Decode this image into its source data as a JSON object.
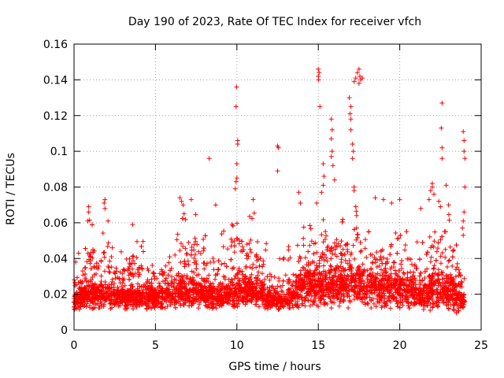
{
  "chart_data": {
    "type": "scatter",
    "title": "Day 190 of 2023, Rate Of TEC Index for receiver vfch",
    "xlabel": "GPS time / hours",
    "ylabel": "ROTI / TECUs",
    "xlim": [
      0,
      25
    ],
    "ylim": [
      0,
      0.16
    ],
    "x_ticks": [
      0,
      5,
      10,
      15,
      20,
      25
    ],
    "y_ticks": [
      0,
      0.02,
      0.04,
      0.06,
      0.08,
      0.1,
      0.12,
      0.14,
      0.16
    ],
    "x_tick_labels": [
      "0",
      "5",
      "10",
      "15",
      "20",
      "25"
    ],
    "y_tick_labels": [
      "0",
      "0.02",
      "0.04",
      "0.06",
      "0.08",
      "0.1",
      "0.12",
      "0.14",
      "0.16"
    ],
    "grid": true,
    "marker": "+",
    "marker_color": "#ff0000",
    "series": [
      {
        "name": "ROTI",
        "note": "dense band of roughly 10000 points from 0 to 24 h, mostly between 0.005 and 0.04 TECU, with bursts to ~0.07 and isolated outliers up to ~0.146",
        "envelope": {
          "x": [
            0,
            0.5,
            1,
            1.5,
            2,
            2.5,
            3,
            3.5,
            4,
            4.5,
            5,
            5.5,
            6,
            6.5,
            7,
            7.5,
            8,
            8.5,
            9,
            9.5,
            10,
            10.5,
            11,
            11.5,
            12,
            12.5,
            13,
            13.5,
            14,
            14.5,
            15,
            15.5,
            16,
            16.5,
            17,
            17.5,
            18,
            18.5,
            19,
            19.5,
            20,
            20.5,
            21,
            21.5,
            22,
            22.5,
            23,
            23.5,
            24
          ],
          "low": [
            0.007,
            0.008,
            0.007,
            0.006,
            0.007,
            0.008,
            0.008,
            0.007,
            0.008,
            0.008,
            0.008,
            0.007,
            0.008,
            0.007,
            0.006,
            0.007,
            0.007,
            0.008,
            0.008,
            0.008,
            0.007,
            0.008,
            0.008,
            0.008,
            0.008,
            0.009,
            0.009,
            0.007,
            0.007,
            0.006,
            0.006,
            0.006,
            0.006,
            0.006,
            0.006,
            0.006,
            0.006,
            0.006,
            0.006,
            0.007,
            0.007,
            0.007,
            0.006,
            0.005,
            0.004,
            0.005,
            0.005,
            0.005,
            0.006
          ],
          "mid": [
            0.016,
            0.018,
            0.02,
            0.019,
            0.02,
            0.019,
            0.018,
            0.018,
            0.019,
            0.019,
            0.018,
            0.018,
            0.02,
            0.022,
            0.022,
            0.022,
            0.02,
            0.019,
            0.019,
            0.02,
            0.022,
            0.022,
            0.022,
            0.02,
            0.017,
            0.016,
            0.016,
            0.02,
            0.024,
            0.025,
            0.024,
            0.024,
            0.024,
            0.024,
            0.025,
            0.025,
            0.024,
            0.023,
            0.023,
            0.022,
            0.022,
            0.021,
            0.02,
            0.02,
            0.021,
            0.022,
            0.021,
            0.019,
            0.016
          ],
          "high": [
            0.03,
            0.031,
            0.05,
            0.035,
            0.05,
            0.035,
            0.034,
            0.035,
            0.036,
            0.036,
            0.035,
            0.035,
            0.04,
            0.06,
            0.045,
            0.05,
            0.038,
            0.038,
            0.04,
            0.045,
            0.055,
            0.045,
            0.055,
            0.04,
            0.032,
            0.03,
            0.03,
            0.04,
            0.045,
            0.048,
            0.05,
            0.05,
            0.05,
            0.05,
            0.05,
            0.055,
            0.05,
            0.045,
            0.045,
            0.042,
            0.042,
            0.04,
            0.04,
            0.04,
            0.05,
            0.055,
            0.05,
            0.04,
            0.03
          ]
        },
        "highlights": [
          {
            "x": 0.1,
            "y": 0.038
          },
          {
            "x": 0.9,
            "y": 0.069
          },
          {
            "x": 0.9,
            "y": 0.066
          },
          {
            "x": 0.85,
            "y": 0.061
          },
          {
            "x": 1.9,
            "y": 0.073
          },
          {
            "x": 1.85,
            "y": 0.071
          },
          {
            "x": 1.9,
            "y": 0.068
          },
          {
            "x": 3.6,
            "y": 0.059
          },
          {
            "x": 6.5,
            "y": 0.074
          },
          {
            "x": 6.6,
            "y": 0.072
          },
          {
            "x": 6.7,
            "y": 0.07
          },
          {
            "x": 7.2,
            "y": 0.073
          },
          {
            "x": 8.3,
            "y": 0.096
          },
          {
            "x": 8.7,
            "y": 0.07
          },
          {
            "x": 9.9,
            "y": 0.079
          },
          {
            "x": 9.95,
            "y": 0.083
          },
          {
            "x": 10.0,
            "y": 0.085
          },
          {
            "x": 10.0,
            "y": 0.093
          },
          {
            "x": 10.05,
            "y": 0.104
          },
          {
            "x": 10.05,
            "y": 0.106
          },
          {
            "x": 9.95,
            "y": 0.125
          },
          {
            "x": 9.98,
            "y": 0.136
          },
          {
            "x": 11.0,
            "y": 0.073
          },
          {
            "x": 12.5,
            "y": 0.103
          },
          {
            "x": 12.55,
            "y": 0.102
          },
          {
            "x": 12.5,
            "y": 0.089
          },
          {
            "x": 13.8,
            "y": 0.077
          },
          {
            "x": 13.9,
            "y": 0.071
          },
          {
            "x": 14.9,
            "y": 0.071
          },
          {
            "x": 15.0,
            "y": 0.146
          },
          {
            "x": 15.05,
            "y": 0.144
          },
          {
            "x": 15.0,
            "y": 0.142
          },
          {
            "x": 15.02,
            "y": 0.14
          },
          {
            "x": 15.1,
            "y": 0.125
          },
          {
            "x": 15.3,
            "y": 0.093
          },
          {
            "x": 15.35,
            "y": 0.086
          },
          {
            "x": 15.3,
            "y": 0.081
          },
          {
            "x": 15.2,
            "y": 0.077
          },
          {
            "x": 15.8,
            "y": 0.118
          },
          {
            "x": 15.85,
            "y": 0.112
          },
          {
            "x": 15.8,
            "y": 0.107
          },
          {
            "x": 15.85,
            "y": 0.1
          },
          {
            "x": 15.8,
            "y": 0.097
          },
          {
            "x": 15.9,
            "y": 0.092
          },
          {
            "x": 16.0,
            "y": 0.084
          },
          {
            "x": 16.9,
            "y": 0.13
          },
          {
            "x": 17.0,
            "y": 0.125
          },
          {
            "x": 16.95,
            "y": 0.121
          },
          {
            "x": 17.0,
            "y": 0.118
          },
          {
            "x": 17.0,
            "y": 0.112
          },
          {
            "x": 17.1,
            "y": 0.104
          },
          {
            "x": 17.15,
            "y": 0.1
          },
          {
            "x": 17.1,
            "y": 0.096
          },
          {
            "x": 17.2,
            "y": 0.08
          },
          {
            "x": 17.2,
            "y": 0.078
          },
          {
            "x": 17.3,
            "y": 0.069
          },
          {
            "x": 17.6,
            "y": 0.14
          },
          {
            "x": 17.55,
            "y": 0.142
          },
          {
            "x": 17.4,
            "y": 0.144
          },
          {
            "x": 17.5,
            "y": 0.146
          },
          {
            "x": 17.7,
            "y": 0.141
          },
          {
            "x": 17.5,
            "y": 0.138
          },
          {
            "x": 17.3,
            "y": 0.141
          },
          {
            "x": 17.2,
            "y": 0.139
          },
          {
            "x": 18.5,
            "y": 0.074
          },
          {
            "x": 19.0,
            "y": 0.073
          },
          {
            "x": 19.5,
            "y": 0.071
          },
          {
            "x": 20.0,
            "y": 0.073
          },
          {
            "x": 21.3,
            "y": 0.068
          },
          {
            "x": 21.8,
            "y": 0.073
          },
          {
            "x": 21.9,
            "y": 0.078
          },
          {
            "x": 22.0,
            "y": 0.082
          },
          {
            "x": 22.0,
            "y": 0.08
          },
          {
            "x": 22.1,
            "y": 0.076
          },
          {
            "x": 22.4,
            "y": 0.072
          },
          {
            "x": 22.5,
            "y": 0.069
          },
          {
            "x": 22.6,
            "y": 0.096
          },
          {
            "x": 22.6,
            "y": 0.102
          },
          {
            "x": 22.55,
            "y": 0.113
          },
          {
            "x": 22.6,
            "y": 0.127
          },
          {
            "x": 22.85,
            "y": 0.081
          },
          {
            "x": 23.0,
            "y": 0.07
          },
          {
            "x": 23.9,
            "y": 0.111
          },
          {
            "x": 23.95,
            "y": 0.106
          },
          {
            "x": 23.95,
            "y": 0.1
          },
          {
            "x": 24.0,
            "y": 0.096
          },
          {
            "x": 24.0,
            "y": 0.08
          },
          {
            "x": 23.95,
            "y": 0.066
          },
          {
            "x": 23.9,
            "y": 0.061
          },
          {
            "x": 23.85,
            "y": 0.057
          },
          {
            "x": 23.9,
            "y": 0.053
          }
        ]
      }
    ]
  }
}
